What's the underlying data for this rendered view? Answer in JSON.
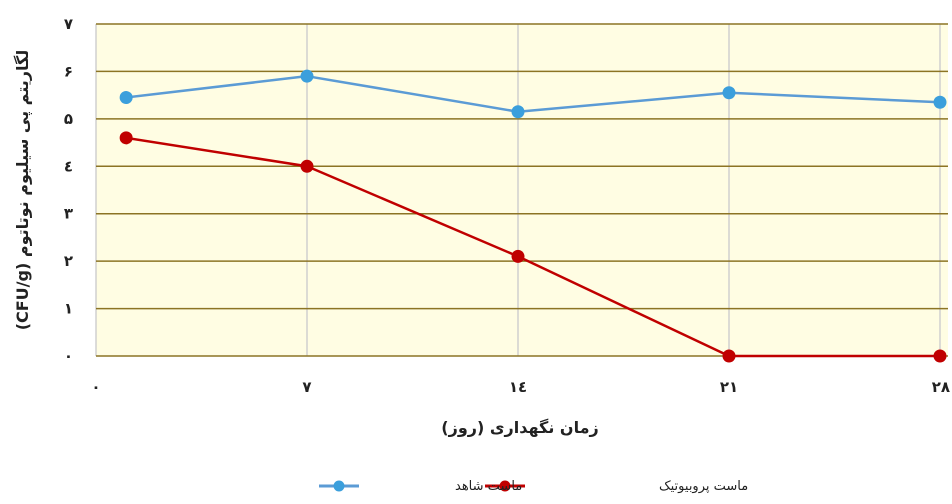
{
  "chart_data": {
    "type": "line",
    "title": "",
    "xlabel": "زمان نگهداری (روز)",
    "ylabel": "لگاریتم پی سیلیوم نوتاتوم (CFU/g)",
    "x_ticks": [
      {
        "value": 0,
        "label": "۰"
      },
      {
        "value": 7,
        "label": "۷"
      },
      {
        "value": 14,
        "label": "۱٤"
      },
      {
        "value": 21,
        "label": "۲۱"
      },
      {
        "value": 28,
        "label": "۲۸"
      }
    ],
    "y_ticks": [
      {
        "value": 0,
        "label": "۰"
      },
      {
        "value": 1,
        "label": "۱"
      },
      {
        "value": 2,
        "label": "۲"
      },
      {
        "value": 3,
        "label": "۳"
      },
      {
        "value": 4,
        "label": "٤"
      },
      {
        "value": 5,
        "label": "۵"
      },
      {
        "value": 6,
        "label": "۶"
      },
      {
        "value": 7,
        "label": "۷"
      }
    ],
    "xlim": [
      0,
      28
    ],
    "ylim": [
      0,
      7
    ],
    "grid": true,
    "legend_position": "bottom",
    "series": [
      {
        "name": "ماست شاهد",
        "color": "#3b9fdc",
        "line_color": "#5b9bd5",
        "x": [
          1,
          7,
          14,
          21,
          28
        ],
        "y": [
          5.45,
          5.9,
          5.15,
          5.55,
          5.35
        ]
      },
      {
        "name": "ماست پروبیوتیک",
        "color": "#c00000",
        "line_color": "#c00000",
        "x": [
          1,
          7,
          14,
          21,
          28
        ],
        "y": [
          4.6,
          4.0,
          2.1,
          0.0,
          0.0
        ]
      }
    ]
  },
  "colors": {
    "plot_background": "#fffde3",
    "horizontal_grid": "#8c7424",
    "vertical_grid": "#d0d0d0"
  }
}
